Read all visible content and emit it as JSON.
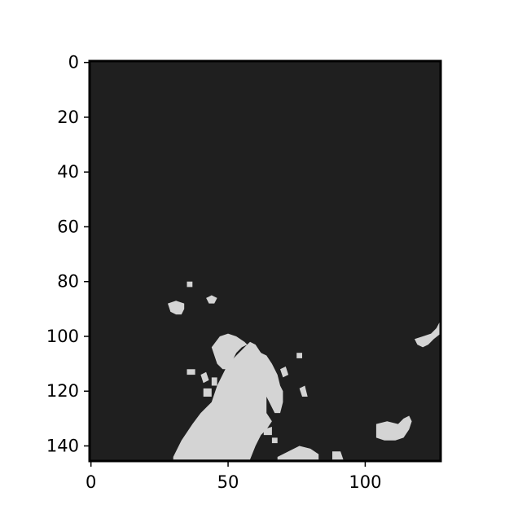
{
  "chart_data": {
    "type": "heatmap",
    "title": "",
    "xlabel": "",
    "ylabel": "",
    "image_size": {
      "cols": 128,
      "rows": 146
    },
    "xlim": [
      -0.5,
      127.5
    ],
    "ylim": [
      145.5,
      -0.5
    ],
    "grid": false,
    "legend": "none",
    "x_ticks": [
      0,
      50,
      100
    ],
    "x_tick_labels": [
      "0",
      "50",
      "100"
    ],
    "y_ticks": [
      0,
      20,
      40,
      60,
      80,
      100,
      120,
      140
    ],
    "y_tick_labels": [
      "0",
      "20",
      "40",
      "60",
      "80",
      "100",
      "120",
      "140"
    ],
    "colors": {
      "background": "#1f1f1f",
      "foreground": "#d4d4d4"
    },
    "values": "binary mask (0 = dark, 1 = light)",
    "light_regions": [
      {
        "polygon": [
          [
            30,
            144
          ],
          [
            33,
            138
          ],
          [
            37,
            132
          ],
          [
            40,
            128
          ],
          [
            44,
            124
          ],
          [
            46,
            118
          ],
          [
            49,
            112
          ],
          [
            52,
            108
          ],
          [
            56,
            104
          ],
          [
            58,
            102
          ],
          [
            60,
            103
          ],
          [
            62,
            106
          ],
          [
            64,
            107
          ],
          [
            66,
            110
          ],
          [
            68,
            114
          ],
          [
            69,
            118
          ],
          [
            70,
            120
          ],
          [
            70,
            124
          ],
          [
            69,
            128
          ],
          [
            67,
            128
          ],
          [
            65,
            124
          ],
          [
            64,
            122
          ],
          [
            64,
            128
          ],
          [
            66,
            131
          ],
          [
            64,
            134
          ],
          [
            62,
            136
          ],
          [
            60,
            140
          ],
          [
            58,
            145
          ],
          [
            30,
            145
          ]
        ]
      },
      {
        "polygon": [
          [
            44,
            104
          ],
          [
            47,
            100
          ],
          [
            50,
            99
          ],
          [
            53,
            100
          ],
          [
            56,
            102
          ],
          [
            57,
            103
          ],
          [
            55,
            104
          ],
          [
            53,
            106
          ],
          [
            52,
            108
          ],
          [
            50,
            112
          ],
          [
            48,
            112
          ],
          [
            46,
            110
          ]
        ]
      },
      {
        "polygon": [
          [
            57,
            105
          ],
          [
            59,
            104
          ],
          [
            61,
            105
          ],
          [
            63,
            107
          ],
          [
            62,
            109
          ],
          [
            60,
            108
          ]
        ]
      },
      {
        "polygon": [
          [
            35,
            112
          ],
          [
            38,
            112
          ],
          [
            38,
            114
          ],
          [
            35,
            114
          ]
        ]
      },
      {
        "polygon": [
          [
            40,
            114
          ],
          [
            42,
            113
          ],
          [
            43,
            116
          ],
          [
            41,
            117
          ]
        ]
      },
      {
        "polygon": [
          [
            44,
            115
          ],
          [
            46,
            115
          ],
          [
            46,
            118
          ],
          [
            44,
            118
          ]
        ]
      },
      {
        "polygon": [
          [
            41,
            119
          ],
          [
            44,
            119
          ],
          [
            44,
            122
          ],
          [
            41,
            122
          ]
        ]
      },
      {
        "polygon": [
          [
            54,
            123
          ],
          [
            57,
            122
          ],
          [
            57,
            126
          ],
          [
            54,
            125
          ]
        ]
      },
      {
        "polygon": [
          [
            63,
            134
          ],
          [
            66,
            133
          ],
          [
            66,
            136
          ],
          [
            63,
            136
          ]
        ]
      },
      {
        "polygon": [
          [
            66,
            137
          ],
          [
            68,
            137
          ],
          [
            68,
            139
          ],
          [
            66,
            139
          ]
        ]
      },
      {
        "polygon": [
          [
            69,
            112
          ],
          [
            71,
            111
          ],
          [
            72,
            114
          ],
          [
            70,
            115
          ]
        ]
      },
      {
        "polygon": [
          [
            75,
            106
          ],
          [
            77,
            106
          ],
          [
            77,
            108
          ],
          [
            75,
            108
          ]
        ]
      },
      {
        "polygon": [
          [
            76,
            119
          ],
          [
            78,
            118
          ],
          [
            79,
            122
          ],
          [
            77,
            122
          ]
        ]
      },
      {
        "polygon": [
          [
            68,
            144
          ],
          [
            72,
            142
          ],
          [
            76,
            140
          ],
          [
            80,
            141
          ],
          [
            83,
            143
          ],
          [
            83,
            145
          ],
          [
            68,
            145
          ]
        ]
      },
      {
        "polygon": [
          [
            88,
            142
          ],
          [
            91,
            142
          ],
          [
            92,
            145
          ],
          [
            88,
            145
          ]
        ]
      },
      {
        "polygon": [
          [
            28,
            88
          ],
          [
            31,
            87
          ],
          [
            34,
            88
          ],
          [
            34,
            90
          ],
          [
            33,
            92
          ],
          [
            31,
            92
          ],
          [
            29,
            91
          ]
        ]
      },
      {
        "polygon": [
          [
            35,
            80
          ],
          [
            37,
            80
          ],
          [
            37,
            82
          ],
          [
            35,
            82
          ]
        ]
      },
      {
        "polygon": [
          [
            42,
            86
          ],
          [
            44,
            85
          ],
          [
            46,
            86
          ],
          [
            45,
            88
          ],
          [
            43,
            88
          ]
        ]
      },
      {
        "polygon": [
          [
            104,
            132
          ],
          [
            108,
            131
          ],
          [
            112,
            132
          ],
          [
            114,
            130
          ],
          [
            116,
            129
          ],
          [
            117,
            131
          ],
          [
            116,
            134
          ],
          [
            114,
            137
          ],
          [
            111,
            138
          ],
          [
            107,
            138
          ],
          [
            104,
            137
          ]
        ]
      },
      {
        "polygon": [
          [
            118,
            101
          ],
          [
            121,
            100
          ],
          [
            124,
            99
          ],
          [
            126,
            97
          ],
          [
            127,
            95
          ],
          [
            127.5,
            95
          ],
          [
            127.5,
            99
          ],
          [
            125,
            101
          ],
          [
            123,
            103
          ],
          [
            121,
            104
          ],
          [
            119,
            103
          ]
        ]
      }
    ]
  }
}
